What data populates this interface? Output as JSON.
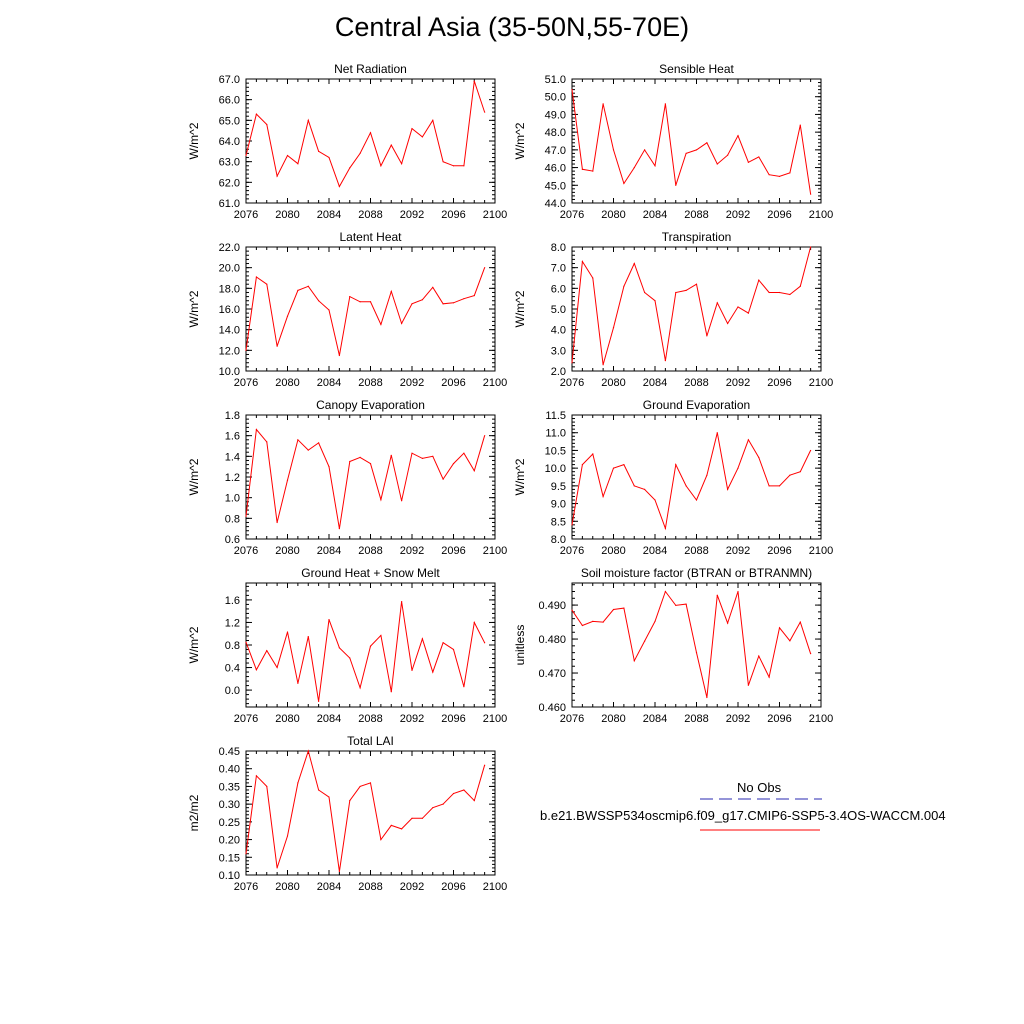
{
  "title": "Central Asia (35-50N,55-70E)",
  "colors": {
    "model_line": "#ff0000",
    "obs_line": "#2a2ab0",
    "axis": "#000000"
  },
  "legend": {
    "obs_label": "No Obs",
    "model_label": "b.e21.BWSSP534oscmip6.f09_g17.CMIP6-SSP5-3.4OS-WACCM.004"
  },
  "chart_data": [
    {
      "type": "line",
      "title": "Net Radiation",
      "ylabel": "W/m^2",
      "xlabel": "",
      "xlim": [
        2076,
        2100
      ],
      "ylim": [
        61.0,
        67.0
      ],
      "xticks": [
        2076,
        2080,
        2084,
        2088,
        2092,
        2096,
        2100
      ],
      "yticks": [
        "61.0",
        "62.0",
        "63.0",
        "64.0",
        "65.0",
        "66.0",
        "67.0"
      ],
      "x": [
        2076,
        2077,
        2078,
        2079,
        2080,
        2081,
        2082,
        2083,
        2084,
        2085,
        2086,
        2087,
        2088,
        2089,
        2090,
        2091,
        2092,
        2093,
        2094,
        2095,
        2096,
        2097,
        2098,
        2099
      ],
      "series": [
        {
          "values": [
            63.3,
            65.3,
            64.8,
            62.3,
            63.3,
            62.9,
            65.0,
            63.5,
            63.2,
            61.8,
            62.7,
            63.4,
            64.4,
            62.8,
            63.8,
            62.9,
            64.6,
            64.2,
            65.0,
            63.0,
            62.8,
            62.8,
            66.9,
            65.4
          ]
        }
      ]
    },
    {
      "type": "line",
      "title": "Sensible Heat",
      "ylabel": "W/m^2",
      "xlabel": "",
      "xlim": [
        2076,
        2100
      ],
      "ylim": [
        44.0,
        51.0
      ],
      "xticks": [
        2076,
        2080,
        2084,
        2088,
        2092,
        2096,
        2100
      ],
      "yticks": [
        "44.0",
        "45.0",
        "46.0",
        "47.0",
        "48.0",
        "49.0",
        "50.0",
        "51.0"
      ],
      "x": [
        2076,
        2077,
        2078,
        2079,
        2080,
        2081,
        2082,
        2083,
        2084,
        2085,
        2086,
        2087,
        2088,
        2089,
        2090,
        2091,
        2092,
        2093,
        2094,
        2095,
        2096,
        2097,
        2098,
        2099
      ],
      "series": [
        {
          "values": [
            50.4,
            45.9,
            45.8,
            49.6,
            47.0,
            45.1,
            46.0,
            47.0,
            46.1,
            49.6,
            45.0,
            46.8,
            47.0,
            47.4,
            46.2,
            46.7,
            47.8,
            46.3,
            46.6,
            45.6,
            45.5,
            45.7,
            48.4,
            44.5
          ]
        }
      ]
    },
    {
      "type": "line",
      "title": "Latent Heat",
      "ylabel": "W/m^2",
      "xlabel": "",
      "xlim": [
        2076,
        2100
      ],
      "ylim": [
        10.0,
        22.0
      ],
      "xticks": [
        2076,
        2080,
        2084,
        2088,
        2092,
        2096,
        2100
      ],
      "yticks": [
        "10.0",
        "12.0",
        "14.0",
        "16.0",
        "18.0",
        "20.0",
        "22.0"
      ],
      "x": [
        2076,
        2077,
        2078,
        2079,
        2080,
        2081,
        2082,
        2083,
        2084,
        2085,
        2086,
        2087,
        2088,
        2089,
        2090,
        2091,
        2092,
        2093,
        2094,
        2095,
        2096,
        2097,
        2098,
        2099
      ],
      "series": [
        {
          "values": [
            12.0,
            19.1,
            18.4,
            12.4,
            15.3,
            17.8,
            18.2,
            16.8,
            15.9,
            11.5,
            17.2,
            16.7,
            16.7,
            14.5,
            17.7,
            14.6,
            16.5,
            16.9,
            18.1,
            16.5,
            16.6,
            17.0,
            17.3,
            20.0
          ]
        }
      ]
    },
    {
      "type": "line",
      "title": "Transpiration",
      "ylabel": "W/m^2",
      "xlabel": "",
      "xlim": [
        2076,
        2100
      ],
      "ylim": [
        2.0,
        8.0
      ],
      "xticks": [
        2076,
        2080,
        2084,
        2088,
        2092,
        2096,
        2100
      ],
      "yticks": [
        "2.0",
        "3.0",
        "4.0",
        "5.0",
        "6.0",
        "7.0",
        "8.0"
      ],
      "x": [
        2076,
        2077,
        2078,
        2079,
        2080,
        2081,
        2082,
        2083,
        2084,
        2085,
        2086,
        2087,
        2088,
        2089,
        2090,
        2091,
        2092,
        2093,
        2094,
        2095,
        2096,
        2097,
        2098,
        2099
      ],
      "series": [
        {
          "values": [
            2.4,
            7.3,
            6.5,
            2.3,
            4.1,
            6.1,
            7.2,
            5.8,
            5.4,
            2.5,
            5.8,
            5.9,
            6.2,
            3.7,
            5.3,
            4.3,
            5.1,
            4.8,
            6.4,
            5.8,
            5.8,
            5.7,
            6.1,
            8.0
          ]
        }
      ]
    },
    {
      "type": "line",
      "title": "Canopy Evaporation",
      "ylabel": "W/m^2",
      "xlabel": "",
      "xlim": [
        2076,
        2100
      ],
      "ylim": [
        0.6,
        1.8
      ],
      "xticks": [
        2076,
        2080,
        2084,
        2088,
        2092,
        2096,
        2100
      ],
      "yticks": [
        "0.6",
        "0.8",
        "1.0",
        "1.2",
        "1.4",
        "1.6",
        "1.8"
      ],
      "x": [
        2076,
        2077,
        2078,
        2079,
        2080,
        2081,
        2082,
        2083,
        2084,
        2085,
        2086,
        2087,
        2088,
        2089,
        2090,
        2091,
        2092,
        2093,
        2094,
        2095,
        2096,
        2097,
        2098,
        2099
      ],
      "series": [
        {
          "values": [
            0.82,
            1.66,
            1.54,
            0.76,
            1.17,
            1.56,
            1.46,
            1.53,
            1.3,
            0.7,
            1.35,
            1.39,
            1.33,
            0.98,
            1.41,
            0.97,
            1.43,
            1.38,
            1.4,
            1.18,
            1.33,
            1.43,
            1.26,
            1.6
          ]
        }
      ]
    },
    {
      "type": "line",
      "title": "Ground Evaporation",
      "ylabel": "W/m^2",
      "xlabel": "",
      "xlim": [
        2076,
        2100
      ],
      "ylim": [
        8.0,
        11.5
      ],
      "xticks": [
        2076,
        2080,
        2084,
        2088,
        2092,
        2096,
        2100
      ],
      "yticks": [
        "8.0",
        "8.5",
        "9.0",
        "9.5",
        "10.0",
        "10.5",
        "11.0",
        "11.5"
      ],
      "x": [
        2076,
        2077,
        2078,
        2079,
        2080,
        2081,
        2082,
        2083,
        2084,
        2085,
        2086,
        2087,
        2088,
        2089,
        2090,
        2091,
        2092,
        2093,
        2094,
        2095,
        2096,
        2097,
        2098,
        2099
      ],
      "series": [
        {
          "values": [
            8.4,
            10.1,
            10.4,
            9.2,
            10.0,
            10.1,
            9.5,
            9.4,
            9.1,
            8.3,
            10.1,
            9.5,
            9.1,
            9.8,
            11.0,
            9.4,
            10.0,
            10.8,
            10.3,
            9.5,
            9.5,
            9.8,
            9.9,
            10.5
          ]
        }
      ]
    },
    {
      "type": "line",
      "title": "Ground Heat + Snow Melt",
      "ylabel": "W/m^2",
      "xlabel": "",
      "xlim": [
        2076,
        2100
      ],
      "ylim": [
        -0.3,
        1.9
      ],
      "xticks": [
        2076,
        2080,
        2084,
        2088,
        2092,
        2096,
        2100
      ],
      "yticks": [
        "0.0",
        "0.4",
        "0.8",
        "1.2",
        "1.6"
      ],
      "x": [
        2076,
        2077,
        2078,
        2079,
        2080,
        2081,
        2082,
        2083,
        2084,
        2085,
        2086,
        2087,
        2088,
        2089,
        2090,
        2091,
        2092,
        2093,
        2094,
        2095,
        2096,
        2097,
        2098,
        2099
      ],
      "series": [
        {
          "values": [
            0.85,
            0.36,
            0.7,
            0.4,
            1.03,
            0.12,
            0.95,
            -0.2,
            1.25,
            0.75,
            0.57,
            0.04,
            0.78,
            0.97,
            -0.03,
            1.57,
            0.35,
            0.91,
            0.32,
            0.84,
            0.72,
            0.06,
            1.2,
            0.84
          ]
        }
      ]
    },
    {
      "type": "line",
      "title": "Soil moisture factor (BTRAN or BTRANMN)",
      "ylabel": "unitless",
      "xlabel": "",
      "xlim": [
        2076,
        2100
      ],
      "ylim": [
        0.46,
        0.4965
      ],
      "xticks": [
        2076,
        2080,
        2084,
        2088,
        2092,
        2096,
        2100
      ],
      "yticks": [
        "0.460",
        "0.470",
        "0.480",
        "0.490"
      ],
      "x": [
        2076,
        2077,
        2078,
        2079,
        2080,
        2081,
        2082,
        2083,
        2084,
        2085,
        2086,
        2087,
        2088,
        2089,
        2090,
        2091,
        2092,
        2093,
        2094,
        2095,
        2096,
        2097,
        2098,
        2099
      ],
      "series": [
        {
          "values": [
            0.4885,
            0.484,
            0.4852,
            0.485,
            0.4887,
            0.4891,
            0.4736,
            0.4794,
            0.4852,
            0.494,
            0.4899,
            0.4903,
            0.476,
            0.4628,
            0.4929,
            0.4847,
            0.494,
            0.4664,
            0.475,
            0.4688,
            0.4833,
            0.4795,
            0.485,
            0.4757
          ]
        }
      ]
    },
    {
      "type": "line",
      "title": "Total LAI",
      "ylabel": "m2/m2",
      "xlabel": "",
      "xlim": [
        2076,
        2100
      ],
      "ylim": [
        0.1,
        0.45
      ],
      "xticks": [
        2076,
        2080,
        2084,
        2088,
        2092,
        2096,
        2100
      ],
      "yticks": [
        "0.10",
        "0.15",
        "0.20",
        "0.25",
        "0.30",
        "0.35",
        "0.40",
        "0.45"
      ],
      "x": [
        2076,
        2077,
        2078,
        2079,
        2080,
        2081,
        2082,
        2083,
        2084,
        2085,
        2086,
        2087,
        2088,
        2089,
        2090,
        2091,
        2092,
        2093,
        2094,
        2095,
        2096,
        2097,
        2098,
        2099
      ],
      "series": [
        {
          "values": [
            0.16,
            0.38,
            0.35,
            0.12,
            0.21,
            0.36,
            0.45,
            0.34,
            0.32,
            0.11,
            0.31,
            0.35,
            0.36,
            0.2,
            0.24,
            0.23,
            0.26,
            0.26,
            0.29,
            0.3,
            0.33,
            0.34,
            0.31,
            0.41
          ]
        }
      ]
    }
  ]
}
